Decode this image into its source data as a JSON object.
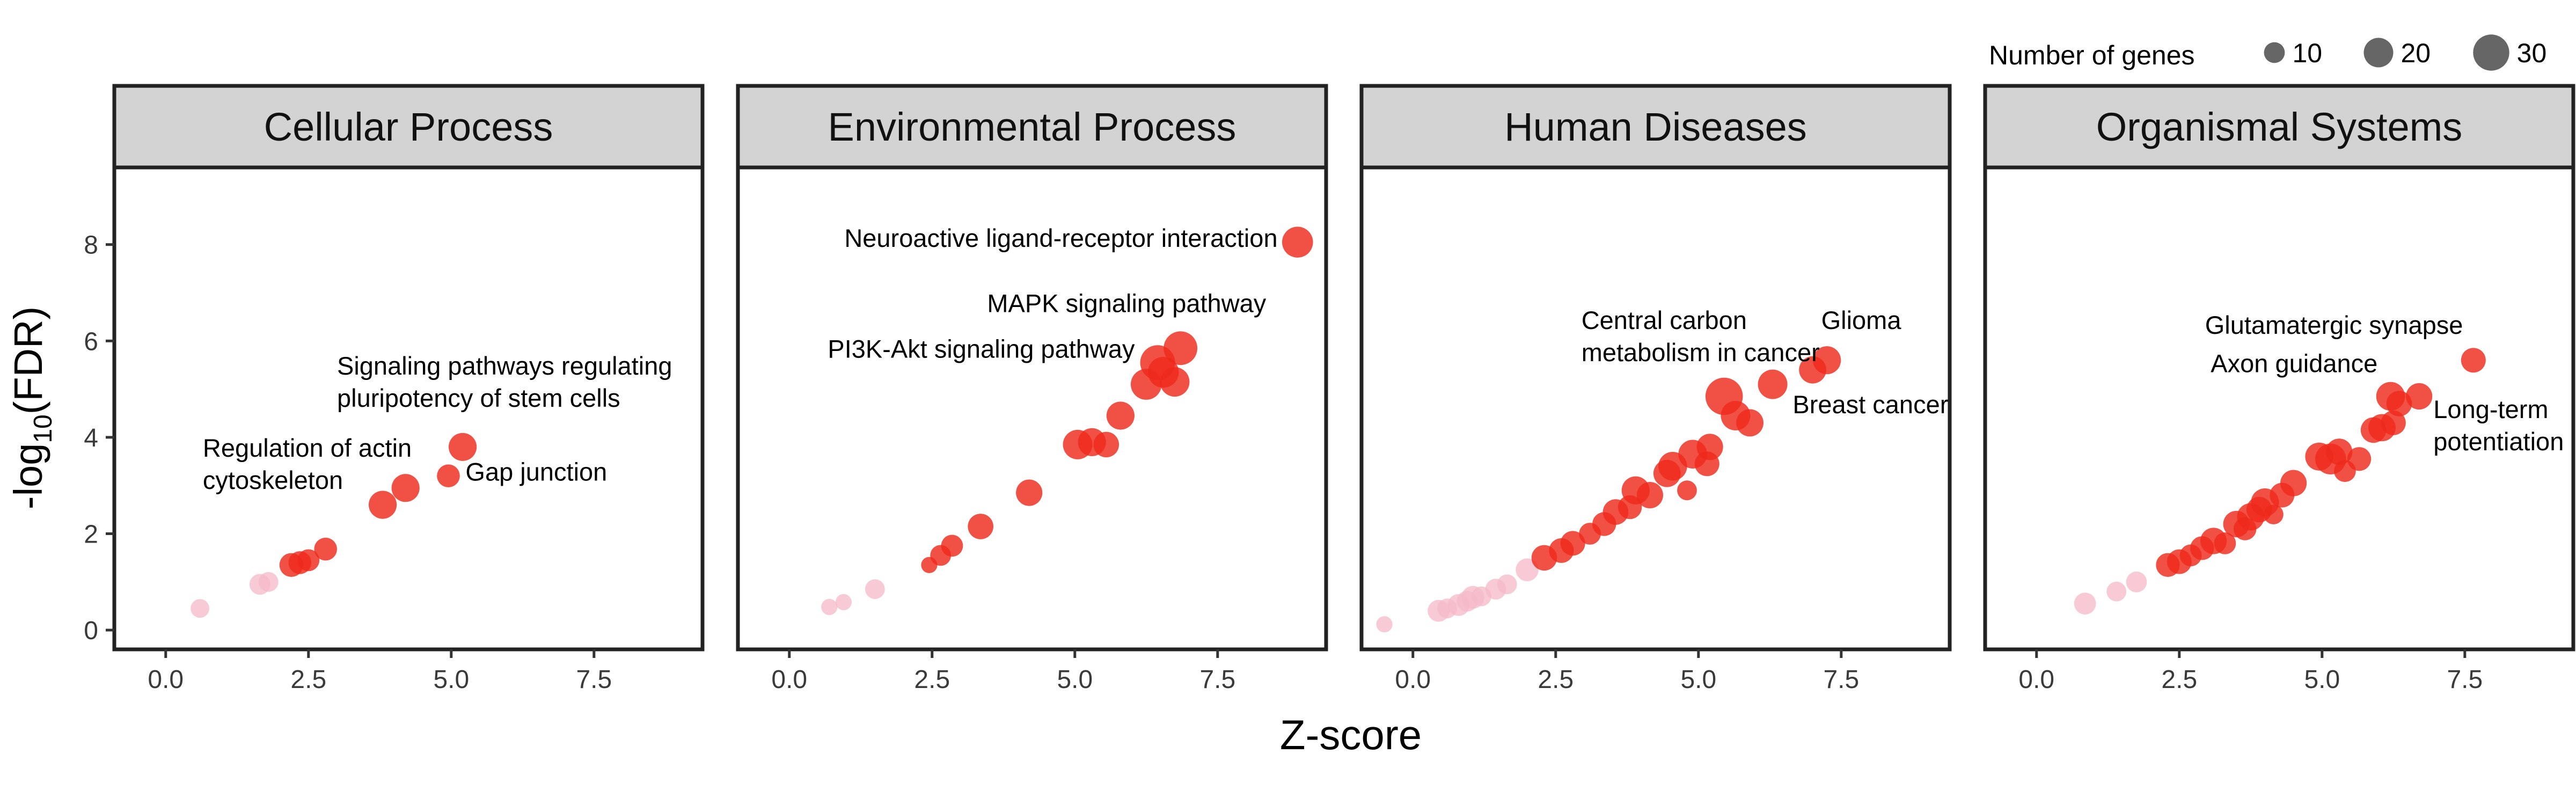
{
  "chart_data": {
    "type": "scatter",
    "xlabel": "Z-score",
    "ylabel": {
      "prefix": "-log",
      "subscript": "10",
      "suffix": "(FDR)"
    },
    "xlim": [
      -0.9,
      9.4
    ],
    "ylim": [
      -0.4,
      9.6
    ],
    "xticks": [
      0,
      2.5,
      5,
      7.5
    ],
    "xtick_labels": [
      "0.0",
      "2.5",
      "5.0",
      "7.5"
    ],
    "yticks": [
      0,
      2,
      4,
      6,
      8
    ],
    "ytick_labels": [
      "0",
      "2",
      "4",
      "6",
      "8"
    ],
    "legend": {
      "title": "Number of genes",
      "entries": [
        {
          "label": "10",
          "size": 10
        },
        {
          "label": "20",
          "size": 20
        },
        {
          "label": "30",
          "size": 30
        }
      ]
    },
    "colors": {
      "significant": "#ee2a1b",
      "nonsignificant": "#f6b8c8",
      "strip": "#d3d3d3"
    },
    "panels": [
      {
        "title": "Cellular Process",
        "points": [
          {
            "x": 0.6,
            "y": 0.45,
            "size": 8,
            "sig": false
          },
          {
            "x": 1.65,
            "y": 0.95,
            "size": 10,
            "sig": false
          },
          {
            "x": 1.8,
            "y": 1.0,
            "size": 9,
            "sig": false
          },
          {
            "x": 2.2,
            "y": 1.35,
            "size": 13,
            "sig": true
          },
          {
            "x": 2.35,
            "y": 1.4,
            "size": 12,
            "sig": true
          },
          {
            "x": 2.5,
            "y": 1.45,
            "size": 11,
            "sig": true
          },
          {
            "x": 2.8,
            "y": 1.68,
            "size": 12,
            "sig": true
          },
          {
            "x": 3.8,
            "y": 2.6,
            "size": 18,
            "sig": true,
            "label": "Regulation of actin cytoskeleton"
          },
          {
            "x": 4.2,
            "y": 2.95,
            "size": 18,
            "sig": true
          },
          {
            "x": 4.95,
            "y": 3.2,
            "size": 12,
            "sig": true,
            "label": "Gap junction"
          },
          {
            "x": 5.2,
            "y": 3.8,
            "size": 18,
            "sig": true,
            "label": "Signaling pathways regulating pluripotency of stem cells"
          }
        ],
        "annotations": [
          {
            "lines": [
              "Signaling pathways regulating",
              "pluripotency of stem cells"
            ],
            "x": 3.0,
            "y": 5.3,
            "anchor": "start"
          },
          {
            "lines": [
              "Regulation of actin",
              "cytoskeleton"
            ],
            "x": 0.65,
            "y": 3.6,
            "anchor": "start"
          },
          {
            "lines": [
              "Gap junction"
            ],
            "x": 5.25,
            "y": 3.1,
            "anchor": "start"
          }
        ]
      },
      {
        "title": "Environmental Process",
        "points": [
          {
            "x": 0.7,
            "y": 0.48,
            "size": 6,
            "sig": false
          },
          {
            "x": 0.95,
            "y": 0.58,
            "size": 6,
            "sig": false
          },
          {
            "x": 1.5,
            "y": 0.85,
            "size": 9,
            "sig": false
          },
          {
            "x": 2.45,
            "y": 1.35,
            "size": 6,
            "sig": true
          },
          {
            "x": 2.65,
            "y": 1.55,
            "size": 10,
            "sig": true
          },
          {
            "x": 2.85,
            "y": 1.75,
            "size": 11,
            "sig": true
          },
          {
            "x": 3.35,
            "y": 2.15,
            "size": 15,
            "sig": true
          },
          {
            "x": 4.2,
            "y": 2.85,
            "size": 16,
            "sig": true
          },
          {
            "x": 5.05,
            "y": 3.85,
            "size": 20,
            "sig": true
          },
          {
            "x": 5.3,
            "y": 3.9,
            "size": 18,
            "sig": true
          },
          {
            "x": 5.55,
            "y": 3.85,
            "size": 15,
            "sig": true
          },
          {
            "x": 5.8,
            "y": 4.45,
            "size": 18,
            "sig": true
          },
          {
            "x": 6.25,
            "y": 5.1,
            "size": 22,
            "sig": true
          },
          {
            "x": 6.45,
            "y": 5.55,
            "size": 28,
            "sig": true,
            "label": "PI3K-Akt signaling pathway"
          },
          {
            "x": 6.55,
            "y": 5.35,
            "size": 22,
            "sig": true
          },
          {
            "x": 6.75,
            "y": 5.15,
            "size": 20,
            "sig": true
          },
          {
            "x": 6.85,
            "y": 5.85,
            "size": 26,
            "sig": true,
            "label": "MAPK signaling pathway"
          },
          {
            "x": 8.9,
            "y": 8.05,
            "size": 22,
            "sig": true,
            "label": "Neuroactive ligand-receptor interaction"
          }
        ],
        "annotations": [
          {
            "lines": [
              "Neuroactive ligand-receptor interaction"
            ],
            "x": 8.55,
            "y": 7.95,
            "anchor": "end"
          },
          {
            "lines": [
              "MAPK signaling pathway"
            ],
            "x": 8.35,
            "y": 6.6,
            "anchor": "end"
          },
          {
            "lines": [
              "PI3K-Akt signaling pathway"
            ],
            "x": 6.05,
            "y": 5.65,
            "anchor": "end"
          }
        ]
      },
      {
        "title": "Human Diseases",
        "points": [
          {
            "x": -0.5,
            "y": 0.12,
            "size": 6,
            "sig": false
          },
          {
            "x": 0.45,
            "y": 0.4,
            "size": 11,
            "sig": false
          },
          {
            "x": 0.6,
            "y": 0.45,
            "size": 9,
            "sig": false
          },
          {
            "x": 0.8,
            "y": 0.52,
            "size": 11,
            "sig": false
          },
          {
            "x": 0.95,
            "y": 0.6,
            "size": 10,
            "sig": false
          },
          {
            "x": 1.05,
            "y": 0.68,
            "size": 12,
            "sig": false
          },
          {
            "x": 1.2,
            "y": 0.7,
            "size": 9,
            "sig": false
          },
          {
            "x": 1.45,
            "y": 0.85,
            "size": 10,
            "sig": false
          },
          {
            "x": 1.65,
            "y": 0.95,
            "size": 9,
            "sig": false
          },
          {
            "x": 2.0,
            "y": 1.25,
            "size": 12,
            "sig": false
          },
          {
            "x": 2.3,
            "y": 1.5,
            "size": 15,
            "sig": true
          },
          {
            "x": 2.6,
            "y": 1.65,
            "size": 14,
            "sig": true
          },
          {
            "x": 2.8,
            "y": 1.8,
            "size": 14,
            "sig": true
          },
          {
            "x": 3.1,
            "y": 2.0,
            "size": 11,
            "sig": true
          },
          {
            "x": 3.35,
            "y": 2.2,
            "size": 13,
            "sig": true
          },
          {
            "x": 3.55,
            "y": 2.45,
            "size": 15,
            "sig": true
          },
          {
            "x": 3.8,
            "y": 2.55,
            "size": 13,
            "sig": true
          },
          {
            "x": 3.9,
            "y": 2.9,
            "size": 18,
            "sig": true
          },
          {
            "x": 4.15,
            "y": 2.8,
            "size": 16,
            "sig": true
          },
          {
            "x": 4.45,
            "y": 3.25,
            "size": 17,
            "sig": true
          },
          {
            "x": 4.55,
            "y": 3.4,
            "size": 19,
            "sig": true
          },
          {
            "x": 4.8,
            "y": 2.9,
            "size": 9,
            "sig": true
          },
          {
            "x": 4.9,
            "y": 3.65,
            "size": 19,
            "sig": true
          },
          {
            "x": 5.15,
            "y": 3.45,
            "size": 14,
            "sig": true
          },
          {
            "x": 5.2,
            "y": 3.8,
            "size": 16,
            "sig": true
          },
          {
            "x": 5.45,
            "y": 4.85,
            "size": 32,
            "sig": true,
            "label": "Central carbon metabolism in cancer"
          },
          {
            "x": 5.65,
            "y": 4.45,
            "size": 20,
            "sig": true
          },
          {
            "x": 5.9,
            "y": 4.3,
            "size": 17,
            "sig": true
          },
          {
            "x": 6.3,
            "y": 5.1,
            "size": 20,
            "sig": true,
            "label": "Breast cancer"
          },
          {
            "x": 7.0,
            "y": 5.4,
            "size": 17,
            "sig": true
          },
          {
            "x": 7.25,
            "y": 5.6,
            "size": 18,
            "sig": true,
            "label": "Glioma"
          }
        ],
        "annotations": [
          {
            "lines": [
              "Central carbon",
              "metabolism in cancer"
            ],
            "x": 2.95,
            "y": 6.25,
            "anchor": "start"
          },
          {
            "lines": [
              "Glioma"
            ],
            "x": 7.15,
            "y": 6.25,
            "anchor": "start"
          },
          {
            "lines": [
              "Breast cancer"
            ],
            "x": 6.65,
            "y": 4.5,
            "anchor": "start"
          }
        ]
      },
      {
        "title": "Organismal Systems",
        "points": [
          {
            "x": 0.85,
            "y": 0.55,
            "size": 11,
            "sig": false
          },
          {
            "x": 1.4,
            "y": 0.8,
            "size": 9,
            "sig": false
          },
          {
            "x": 1.75,
            "y": 1.0,
            "size": 10,
            "sig": false
          },
          {
            "x": 2.3,
            "y": 1.35,
            "size": 13,
            "sig": true
          },
          {
            "x": 2.5,
            "y": 1.42,
            "size": 14,
            "sig": true
          },
          {
            "x": 2.7,
            "y": 1.55,
            "size": 11,
            "sig": true
          },
          {
            "x": 2.9,
            "y": 1.7,
            "size": 13,
            "sig": true
          },
          {
            "x": 3.1,
            "y": 1.85,
            "size": 16,
            "sig": true
          },
          {
            "x": 3.3,
            "y": 1.8,
            "size": 11,
            "sig": true
          },
          {
            "x": 3.5,
            "y": 2.2,
            "size": 16,
            "sig": true
          },
          {
            "x": 3.65,
            "y": 2.1,
            "size": 12,
            "sig": true
          },
          {
            "x": 3.75,
            "y": 2.35,
            "size": 17,
            "sig": true
          },
          {
            "x": 3.9,
            "y": 2.5,
            "size": 15,
            "sig": true
          },
          {
            "x": 4.0,
            "y": 2.65,
            "size": 18,
            "sig": true
          },
          {
            "x": 4.15,
            "y": 2.4,
            "size": 9,
            "sig": true
          },
          {
            "x": 4.3,
            "y": 2.8,
            "size": 14,
            "sig": true
          },
          {
            "x": 4.5,
            "y": 3.05,
            "size": 16,
            "sig": true
          },
          {
            "x": 4.95,
            "y": 3.6,
            "size": 18,
            "sig": true
          },
          {
            "x": 5.15,
            "y": 3.55,
            "size": 22,
            "sig": true
          },
          {
            "x": 5.3,
            "y": 3.7,
            "size": 16,
            "sig": true
          },
          {
            "x": 5.4,
            "y": 3.3,
            "size": 11,
            "sig": true
          },
          {
            "x": 5.65,
            "y": 3.55,
            "size": 13,
            "sig": true
          },
          {
            "x": 5.9,
            "y": 4.15,
            "size": 15,
            "sig": true
          },
          {
            "x": 6.05,
            "y": 4.2,
            "size": 17,
            "sig": true
          },
          {
            "x": 6.25,
            "y": 4.3,
            "size": 14,
            "sig": true
          },
          {
            "x": 6.2,
            "y": 4.85,
            "size": 19,
            "sig": true,
            "label": "Axon guidance"
          },
          {
            "x": 6.35,
            "y": 4.7,
            "size": 15,
            "sig": true
          },
          {
            "x": 6.7,
            "y": 4.85,
            "size": 16,
            "sig": true,
            "label": "Long-term potentiation"
          },
          {
            "x": 7.65,
            "y": 5.6,
            "size": 14,
            "sig": true,
            "label": "Glutamatergic synapse"
          }
        ],
        "annotations": [
          {
            "lines": [
              "Glutamatergic synapse"
            ],
            "x": 2.95,
            "y": 6.15,
            "anchor": "start"
          },
          {
            "lines": [
              "Axon guidance"
            ],
            "x": 3.05,
            "y": 5.35,
            "anchor": "start"
          },
          {
            "lines": [
              "Long-term",
              "potentiation"
            ],
            "x": 6.95,
            "y": 4.4,
            "anchor": "start"
          }
        ]
      }
    ]
  }
}
